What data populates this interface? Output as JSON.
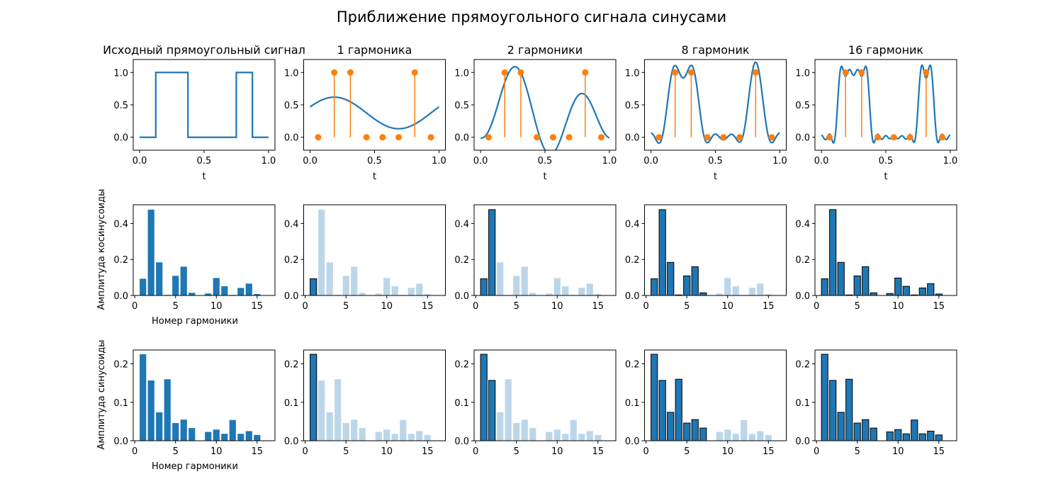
{
  "chart_data": {
    "type": "mixed",
    "title": "Приближение прямоугольного сигнала синусами",
    "signal": {
      "t_range": [
        0,
        1
      ],
      "high_intervals": [
        [
          0.125,
          0.375
        ],
        [
          0.75,
          0.875
        ]
      ],
      "mean": 0.375
    },
    "samples": {
      "t": [
        0.0625,
        0.1875,
        0.3125,
        0.4375,
        0.5625,
        0.6875,
        0.8125,
        0.9375
      ],
      "values": [
        0,
        1,
        1,
        0,
        0,
        0,
        1,
        0
      ]
    },
    "columns": [
      {
        "title": "Исходный прямоугольный сигнал",
        "harmonics": 0
      },
      {
        "title": "1 гармоника",
        "harmonics": 1
      },
      {
        "title": "2 гармоники",
        "harmonics": 2
      },
      {
        "title": "8 гармоник",
        "harmonics": 8
      },
      {
        "title": "16 гармоник",
        "harmonics": 16
      }
    ],
    "harmonic_numbers": [
      1,
      2,
      3,
      4,
      5,
      6,
      7,
      8,
      9,
      10,
      11,
      12,
      13,
      14,
      15,
      16
    ],
    "cos_amplitudes": [
      0.093,
      0.477,
      0.184,
      0.003,
      0.109,
      0.16,
      0.015,
      0,
      0.011,
      0.097,
      0.051,
      0.003,
      0.042,
      0.066,
      0.008,
      0
    ],
    "sin_amplitudes": [
      0.225,
      0.157,
      0.074,
      0.16,
      0.046,
      0.055,
      0.033,
      0,
      0.023,
      0.029,
      0.018,
      0.054,
      0.018,
      0.025,
      0.015,
      0
    ],
    "row1": {
      "xlabel": "t",
      "xlim": [
        -0.05,
        1.05
      ],
      "ylim": [
        -0.2,
        1.2
      ],
      "xticks": [
        "0.0",
        "0.5",
        "1.0"
      ],
      "yticks": [
        "0.0",
        "0.5",
        "1.0"
      ]
    },
    "row2": {
      "ylabel": "Амплитуда косинусоиды",
      "xlabel": "Номер гармоники",
      "xlim": [
        -0.19,
        17.19
      ],
      "ylim": [
        0,
        0.504
      ],
      "xticks": [
        "0",
        "5",
        "10",
        "15"
      ],
      "yticks": [
        "0.0",
        "0.2",
        "0.4"
      ]
    },
    "row3": {
      "ylabel": "Амплитуда синусоиды",
      "xlabel": "Номер гармоники",
      "xlim": [
        -0.19,
        17.19
      ],
      "ylim": [
        0,
        0.236
      ],
      "xticks": [
        "0",
        "5",
        "10",
        "15"
      ],
      "yticks": [
        "0.0",
        "0.1",
        "0.2"
      ]
    }
  },
  "colors": {
    "line": "#1f77b4",
    "samples": "#ff7f0e",
    "bar_active": "#1f77b4",
    "bar_faded": "#bcd6e9"
  }
}
